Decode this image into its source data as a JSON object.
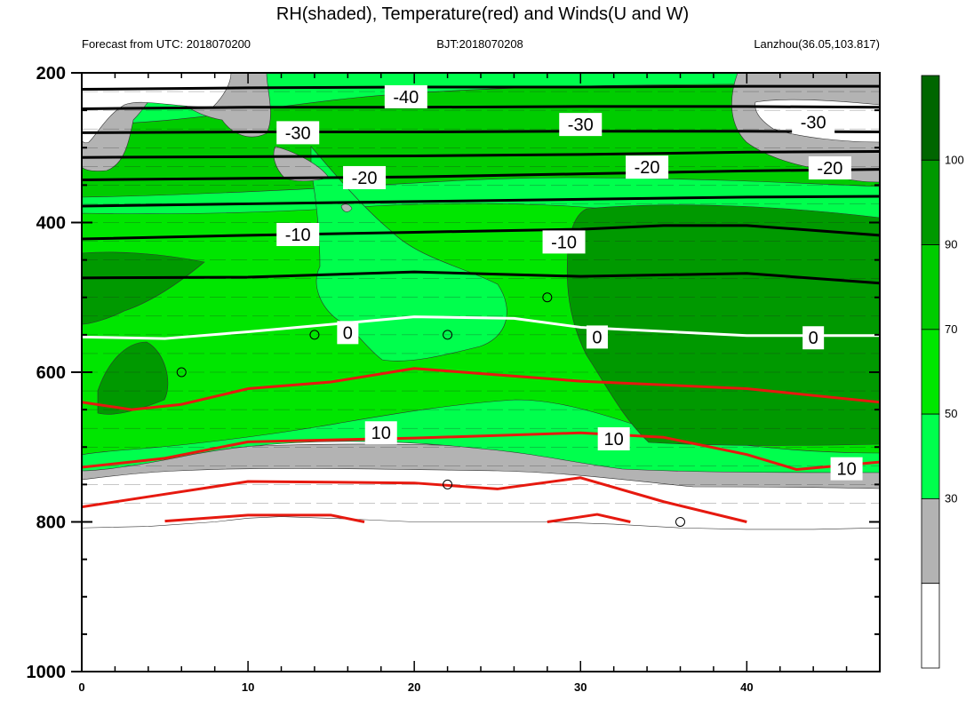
{
  "chart_data": {
    "type": "heatmap",
    "title": "RH(shaded), Temperature(red) and Winds(U and W)",
    "subtitle_left": "Forecast from UTC: 2018070200",
    "subtitle_center": "BJT:2018070208",
    "subtitle_right": "Lanzhou(36.05,103.817)",
    "x_ticks": [
      0,
      10,
      20,
      30,
      40
    ],
    "xlim": [
      0,
      48
    ],
    "y_ticks": [
      200,
      400,
      600,
      800,
      1000
    ],
    "ylim": [
      1000,
      200
    ],
    "y_inverted": true,
    "rh_levels": [
      30,
      50,
      70,
      90,
      100
    ],
    "rh_colors": [
      "#ffffff",
      "#b3b3b3",
      "#00ff4d",
      "#00e600",
      "#00cc00",
      "#009900",
      "#006600"
    ],
    "colorbar_labels": [
      "30",
      "50",
      "70",
      "90",
      "100"
    ],
    "terrain_pressure": [
      [
        0,
        808
      ],
      [
        4,
        806
      ],
      [
        8,
        800
      ],
      [
        10,
        795
      ],
      [
        12,
        793
      ],
      [
        16,
        796
      ],
      [
        20,
        800
      ],
      [
        24,
        800
      ],
      [
        28,
        800
      ],
      [
        32,
        803
      ],
      [
        36,
        808
      ],
      [
        40,
        810
      ],
      [
        44,
        810
      ],
      [
        48,
        808
      ]
    ],
    "temperature_contours": [
      {
        "value": -40,
        "label": "-40",
        "color": "#000000",
        "points": [
          [
            0,
            222
          ],
          [
            10,
            220
          ],
          [
            20,
            219
          ],
          [
            30,
            219
          ],
          [
            40,
            218
          ],
          [
            48,
            218
          ]
        ]
      },
      {
        "value": -35,
        "color": "#000000",
        "points": [
          [
            0,
            248
          ],
          [
            10,
            246
          ],
          [
            20,
            246
          ],
          [
            30,
            245
          ],
          [
            40,
            245
          ],
          [
            48,
            246
          ]
        ]
      },
      {
        "value": -30,
        "label": "-30",
        "color": "#000000",
        "points": [
          [
            0,
            280
          ],
          [
            10,
            279
          ],
          [
            20,
            279
          ],
          [
            30,
            278
          ],
          [
            40,
            278
          ],
          [
            48,
            279
          ]
        ]
      },
      {
        "value": -25,
        "color": "#000000",
        "points": [
          [
            0,
            313
          ],
          [
            10,
            312
          ],
          [
            20,
            311
          ],
          [
            30,
            309
          ],
          [
            40,
            306
          ],
          [
            48,
            305
          ]
        ]
      },
      {
        "value": -20,
        "label": "-20",
        "color": "#000000",
        "points": [
          [
            0,
            343
          ],
          [
            10,
            341
          ],
          [
            20,
            339
          ],
          [
            30,
            335
          ],
          [
            40,
            331
          ],
          [
            48,
            329
          ]
        ]
      },
      {
        "value": -15,
        "color": "#000000",
        "points": [
          [
            0,
            378
          ],
          [
            10,
            375
          ],
          [
            20,
            372
          ],
          [
            30,
            369
          ],
          [
            40,
            366
          ],
          [
            48,
            365
          ]
        ]
      },
      {
        "value": -10,
        "label": "-10",
        "color": "#000000",
        "points": [
          [
            0,
            422
          ],
          [
            10,
            417
          ],
          [
            20,
            413
          ],
          [
            30,
            409
          ],
          [
            35,
            404
          ],
          [
            40,
            404
          ],
          [
            48,
            417
          ]
        ]
      },
      {
        "value": -5,
        "color": "#000000",
        "points": [
          [
            0,
            474
          ],
          [
            10,
            473
          ],
          [
            20,
            466
          ],
          [
            30,
            472
          ],
          [
            40,
            468
          ],
          [
            48,
            481
          ]
        ]
      },
      {
        "value": 0,
        "label": "0",
        "color": "#ffffff",
        "points": [
          [
            0,
            553
          ],
          [
            5,
            555
          ],
          [
            10,
            546
          ],
          [
            20,
            526
          ],
          [
            26,
            528
          ],
          [
            30,
            540
          ],
          [
            40,
            551
          ],
          [
            48,
            551
          ]
        ]
      },
      {
        "value": 5,
        "color": "#e6190f",
        "points": [
          [
            0,
            640
          ],
          [
            3,
            650
          ],
          [
            6,
            643
          ],
          [
            10,
            622
          ],
          [
            15,
            613
          ],
          [
            20,
            595
          ],
          [
            30,
            612
          ],
          [
            40,
            622
          ],
          [
            48,
            640
          ]
        ]
      },
      {
        "value": 10,
        "label": "10",
        "color": "#e6190f",
        "points": [
          [
            0,
            727
          ],
          [
            5,
            715
          ],
          [
            10,
            693
          ],
          [
            20,
            688
          ],
          [
            30,
            681
          ],
          [
            35,
            687
          ],
          [
            40,
            710
          ],
          [
            43,
            730
          ],
          [
            48,
            720
          ]
        ]
      },
      {
        "value": 15,
        "color": "#e6190f",
        "points": [
          [
            0,
            780
          ],
          [
            5,
            763
          ],
          [
            10,
            746
          ],
          [
            20,
            748
          ],
          [
            25,
            756
          ],
          [
            30,
            741
          ],
          [
            35,
            773
          ],
          [
            40,
            800
          ]
        ]
      },
      {
        "value": 20,
        "color": "#e6190f",
        "points": [
          [
            5,
            799
          ],
          [
            10,
            791
          ],
          [
            15,
            791
          ],
          [
            17,
            800
          ]
        ]
      },
      {
        "value": 20,
        "color": "#e6190f",
        "points": [
          [
            28,
            800
          ],
          [
            31,
            790
          ],
          [
            33,
            800
          ]
        ]
      }
    ],
    "contour_labels": [
      {
        "text": "-40",
        "x": 19.5,
        "y": 232
      },
      {
        "text": "-30",
        "x": 13,
        "y": 280
      },
      {
        "text": "-30",
        "x": 30,
        "y": 269
      },
      {
        "text": "-30",
        "x": 44,
        "y": 266
      },
      {
        "text": "-20",
        "x": 17,
        "y": 340
      },
      {
        "text": "-20",
        "x": 34,
        "y": 326
      },
      {
        "text": "-20",
        "x": 45,
        "y": 327
      },
      {
        "text": "-10",
        "x": 13,
        "y": 416
      },
      {
        "text": "-10",
        "x": 29,
        "y": 426
      },
      {
        "text": "0",
        "x": 16,
        "y": 547
      },
      {
        "text": "0",
        "x": 31,
        "y": 553
      },
      {
        "text": "0",
        "x": 44,
        "y": 554
      },
      {
        "text": "10",
        "x": 18,
        "y": 681
      },
      {
        "text": "10",
        "x": 32,
        "y": 689
      },
      {
        "text": "10",
        "x": 46,
        "y": 729
      }
    ],
    "calm_markers": [
      [
        6,
        600
      ],
      [
        14,
        550
      ],
      [
        22,
        550
      ],
      [
        28,
        500
      ],
      [
        22,
        750
      ],
      [
        36,
        800
      ]
    ]
  }
}
